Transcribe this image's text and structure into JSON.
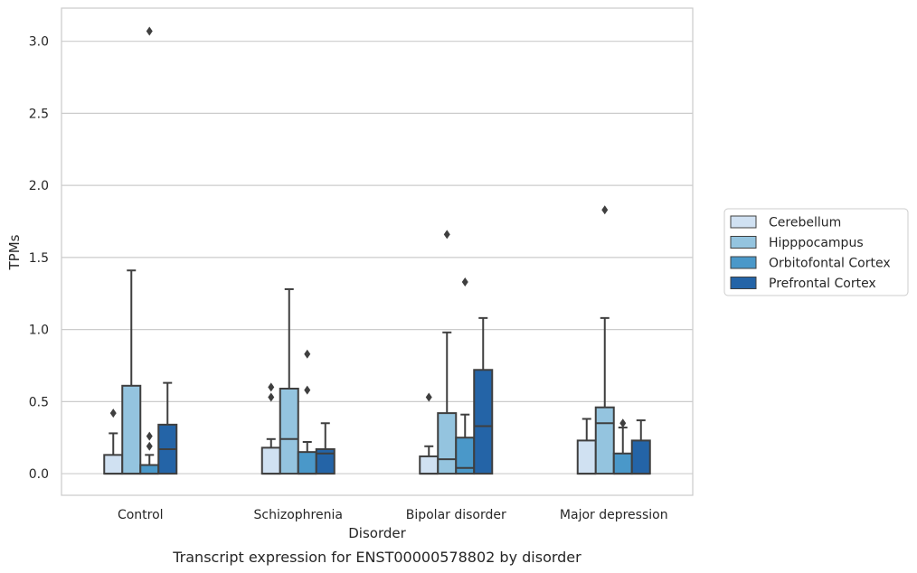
{
  "caption": "Transcript expression for ENST00000578802 by disorder",
  "chart_data": {
    "type": "boxplot",
    "xlabel": "Disorder",
    "ylabel": "TPMs",
    "ylim": [
      -0.15,
      3.23
    ],
    "yticks": [
      "0.0",
      "0.5",
      "1.0",
      "1.5",
      "2.0",
      "2.5",
      "3.0"
    ],
    "categories": [
      "Control",
      "Schizophrenia",
      "Bipolar disorder",
      "Major depression"
    ],
    "grid": "horizontal",
    "legend_position": "right",
    "series": [
      {
        "name": "Cerebellum",
        "color": "#d0e1f2",
        "boxes": [
          {
            "q1": 0.0,
            "median": 0.0,
            "q3": 0.13,
            "whisker_low": 0.0,
            "whisker_high": 0.28,
            "outliers": [
              0.42
            ]
          },
          {
            "q1": 0.0,
            "median": 0.0,
            "q3": 0.18,
            "whisker_low": 0.0,
            "whisker_high": 0.24,
            "outliers": [
              0.53,
              0.6
            ]
          },
          {
            "q1": 0.0,
            "median": 0.0,
            "q3": 0.12,
            "whisker_low": 0.0,
            "whisker_high": 0.19,
            "outliers": [
              0.53
            ]
          },
          {
            "q1": 0.0,
            "median": 0.0,
            "q3": 0.23,
            "whisker_low": 0.0,
            "whisker_high": 0.38,
            "outliers": []
          }
        ]
      },
      {
        "name": "Hipppocampus",
        "color": "#94c4df",
        "boxes": [
          {
            "q1": 0.0,
            "median": 0.0,
            "q3": 0.61,
            "whisker_low": 0.0,
            "whisker_high": 1.41,
            "outliers": []
          },
          {
            "q1": 0.0,
            "median": 0.24,
            "q3": 0.59,
            "whisker_low": 0.0,
            "whisker_high": 1.28,
            "outliers": []
          },
          {
            "q1": 0.0,
            "median": 0.1,
            "q3": 0.42,
            "whisker_low": 0.0,
            "whisker_high": 0.98,
            "outliers": [
              1.66
            ]
          },
          {
            "q1": 0.0,
            "median": 0.35,
            "q3": 0.46,
            "whisker_low": 0.0,
            "whisker_high": 1.08,
            "outliers": [
              1.83
            ]
          }
        ]
      },
      {
        "name": "Orbitofontal Cortex",
        "color": "#4a98c9",
        "boxes": [
          {
            "q1": 0.0,
            "median": 0.0,
            "q3": 0.06,
            "whisker_low": 0.0,
            "whisker_high": 0.13,
            "outliers": [
              0.19,
              0.26,
              3.07
            ]
          },
          {
            "q1": 0.0,
            "median": 0.0,
            "q3": 0.15,
            "whisker_low": 0.0,
            "whisker_high": 0.22,
            "outliers": [
              0.58,
              0.83
            ]
          },
          {
            "q1": 0.0,
            "median": 0.04,
            "q3": 0.25,
            "whisker_low": 0.0,
            "whisker_high": 0.41,
            "outliers": [
              1.33
            ]
          },
          {
            "q1": 0.0,
            "median": 0.0,
            "q3": 0.14,
            "whisker_low": 0.0,
            "whisker_high": 0.32,
            "outliers": [
              0.35
            ]
          }
        ]
      },
      {
        "name": "Prefrontal Cortex",
        "color": "#2464a7",
        "boxes": [
          {
            "q1": 0.0,
            "median": 0.17,
            "q3": 0.34,
            "whisker_low": 0.0,
            "whisker_high": 0.63,
            "outliers": []
          },
          {
            "q1": 0.0,
            "median": 0.14,
            "q3": 0.17,
            "whisker_low": 0.0,
            "whisker_high": 0.35,
            "outliers": []
          },
          {
            "q1": 0.0,
            "median": 0.33,
            "q3": 0.72,
            "whisker_low": 0.0,
            "whisker_high": 1.08,
            "outliers": []
          },
          {
            "q1": 0.0,
            "median": 0.0,
            "q3": 0.23,
            "whisker_low": 0.0,
            "whisker_high": 0.37,
            "outliers": []
          }
        ]
      }
    ]
  }
}
